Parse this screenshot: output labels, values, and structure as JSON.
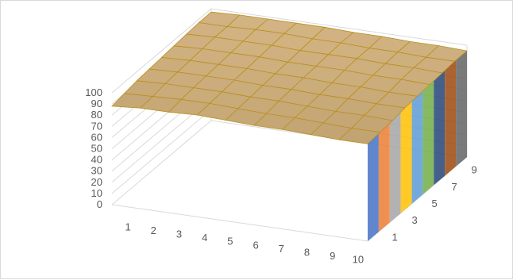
{
  "chart_data": {
    "type": "surface",
    "title": "",
    "x_categories": [
      "1",
      "2",
      "3",
      "4",
      "5",
      "6",
      "7",
      "8",
      "9",
      "10"
    ],
    "series_categories": [
      "1",
      "3",
      "5",
      "7",
      "9"
    ],
    "z_ticks": [
      "0",
      "10",
      "20",
      "30",
      "40",
      "50",
      "60",
      "70",
      "80",
      "90",
      "100"
    ],
    "zlim": [
      0,
      100
    ],
    "gridlines": true,
    "legend": "none",
    "surface_level": [
      [
        88,
        90,
        90,
        91,
        90,
        89,
        89,
        88,
        87,
        87
      ],
      [
        90,
        91,
        92,
        92,
        91,
        90,
        90,
        89,
        88,
        88
      ],
      [
        92,
        93,
        93,
        93,
        92,
        92,
        91,
        90,
        90,
        89
      ],
      [
        93,
        94,
        94,
        94,
        93,
        93,
        92,
        92,
        91,
        91
      ],
      [
        94,
        95,
        95,
        95,
        94,
        94,
        93,
        93,
        92,
        92
      ],
      [
        95,
        96,
        96,
        96,
        95,
        95,
        95,
        94,
        94,
        93
      ],
      [
        96,
        97,
        97,
        97,
        96,
        96,
        96,
        95,
        95,
        94
      ],
      [
        97,
        97,
        98,
        98,
        97,
        97,
        96,
        96,
        95,
        95
      ],
      [
        97,
        98,
        98,
        98,
        98,
        97,
        97,
        96,
        96,
        95
      ]
    ],
    "edge_band_colors": [
      "#4472c4",
      "#ed7d31",
      "#a5a5a5",
      "#ffc000",
      "#5b9bd5",
      "#70ad47",
      "#264478",
      "#9e480e",
      "#636363"
    ],
    "colors": {
      "surface_fill": "#c9a97a",
      "surface_line": "#b8911c",
      "wall_grid": "#d9d9d9"
    }
  }
}
